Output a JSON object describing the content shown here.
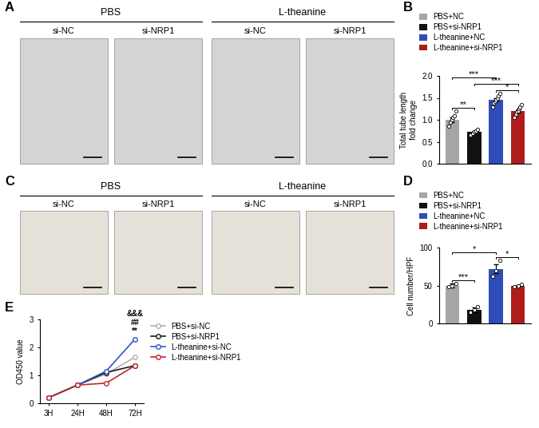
{
  "image_panels": [
    {
      "panel": "A",
      "groups": [
        {
          "label": "PBS",
          "columns": [
            "si-NC",
            "si-NRP1"
          ]
        },
        {
          "label": "L-theanine",
          "columns": [
            "si-NC",
            "si-NRP1"
          ]
        }
      ]
    },
    {
      "panel": "C",
      "groups": [
        {
          "label": "PBS",
          "columns": [
            "si-NC",
            "si-NRP1"
          ]
        },
        {
          "label": "L-theanine",
          "columns": [
            "si-NC",
            "si-NRP1"
          ]
        }
      ]
    }
  ],
  "chart_data": [
    {
      "panel": "B",
      "type": "bar",
      "categories": [
        "PBS+NC",
        "PBS+si-NRP1",
        "L-theanine+NC",
        "L-theanine+si-NRP1"
      ],
      "values": [
        1.0,
        0.72,
        1.45,
        1.2
      ],
      "errors": [
        0.05,
        0.03,
        0.04,
        0.04
      ],
      "points": [
        [
          0.85,
          0.95,
          1.0,
          1.05,
          1.1,
          1.2
        ],
        [
          0.65,
          0.7,
          0.72,
          0.75,
          0.78
        ],
        [
          1.3,
          1.38,
          1.42,
          1.45,
          1.5,
          1.55,
          1.6
        ],
        [
          1.05,
          1.12,
          1.18,
          1.2,
          1.25,
          1.3,
          1.35
        ]
      ],
      "colors": [
        "#a6a6a6",
        "#111111",
        "#2f4db8",
        "#b01c1c"
      ],
      "y_label": "Total tube length\nfold change",
      "ylim": [
        0,
        2
      ],
      "yticks": [
        {
          "value": 0,
          "label": "0.0"
        },
        0.5,
        {
          "value": 1,
          "label": "1.0"
        },
        1.5,
        {
          "value": 2,
          "label": "2.0"
        }
      ],
      "significance": [
        {
          "pair": [
            0,
            1
          ],
          "label": "**"
        },
        {
          "pair": [
            2,
            3
          ],
          "label": "*"
        },
        {
          "pair": [
            1,
            3
          ],
          "label": "***"
        },
        {
          "pair": [
            0,
            2
          ],
          "label": "***"
        }
      ],
      "legend": "upper left",
      "tick_labels": "y"
    },
    {
      "panel": "D",
      "type": "bar",
      "categories": [
        "PBS+NC",
        "PBS+si-NRP1",
        "L-theanine+NC",
        "L-theanine+si-NRP1"
      ],
      "values": [
        50,
        18,
        72,
        50
      ],
      "errors": [
        3,
        3,
        6,
        1
      ],
      "points": [
        [
          48,
          50,
          53
        ],
        [
          15,
          18,
          22
        ],
        [
          62,
          70,
          83
        ],
        [
          48,
          50,
          52
        ]
      ],
      "colors": [
        "#a6a6a6",
        "#111111",
        "#2f4db8",
        "#b01c1c"
      ],
      "y_label": "Cell number/HPF",
      "ylim": [
        0,
        100
      ],
      "yticks": [
        0,
        50,
        100
      ],
      "significance": [
        {
          "pair": [
            0,
            1
          ],
          "label": "***"
        },
        {
          "pair": [
            2,
            3
          ],
          "label": "*"
        },
        {
          "pair": [
            0,
            2
          ],
          "label": "*"
        }
      ],
      "legend": "upper left",
      "tick_labels": "y"
    },
    {
      "panel": "E",
      "type": "line",
      "categories": [
        "3H",
        "24H",
        "48H",
        "72H"
      ],
      "series": [
        {
          "name": "PBS+si-NC",
          "color": "#b0b0b0",
          "values": [
            0.2,
            0.65,
            1.05,
            1.65
          ]
        },
        {
          "name": "PBS+si-NRP1",
          "color": "#1a1a1a",
          "values": [
            0.2,
            0.65,
            1.1,
            1.35
          ]
        },
        {
          "name": "L-theanine+si-NC",
          "color": "#2f55c8",
          "values": [
            0.2,
            0.65,
            1.15,
            2.3
          ]
        },
        {
          "name": "L-theanine+si-NRP1",
          "color": "#c0282d",
          "values": [
            0.2,
            0.65,
            0.72,
            1.35
          ]
        }
      ],
      "marker": "o",
      "y_label": "OD450 value",
      "ylim": [
        0,
        3
      ],
      "yticks": [
        0,
        1,
        2,
        3
      ],
      "annotation": {
        "x": "72H",
        "labels": [
          "&&&",
          "##",
          "**"
        ]
      },
      "legend": "upper left"
    }
  ]
}
